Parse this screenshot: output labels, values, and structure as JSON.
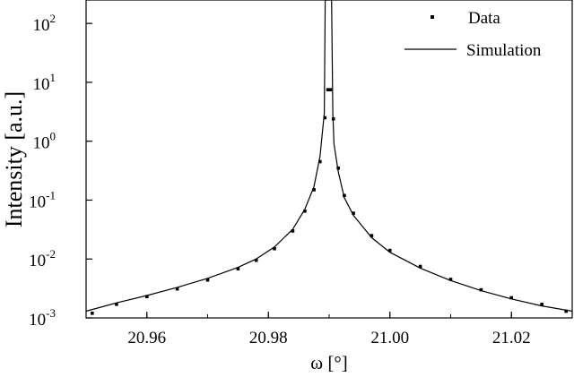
{
  "chart_data": {
    "type": "scatter",
    "title": "",
    "xlabel": "ω [°]",
    "ylabel": "Intensity [a.u.]",
    "xlim": [
      20.95,
      21.03
    ],
    "ylim": [
      0.001,
      250
    ],
    "yscale": "log",
    "grid": false,
    "legend_position": "top-right",
    "x_ticks": [
      {
        "value": 20.96,
        "label": "20.96"
      },
      {
        "value": 20.98,
        "label": "20.98"
      },
      {
        "value": 21.0,
        "label": "21.00"
      },
      {
        "value": 21.02,
        "label": "21.02"
      }
    ],
    "y_ticks": [
      {
        "value": 0.001,
        "base": "10",
        "exp": "-3"
      },
      {
        "value": 0.01,
        "base": "10",
        "exp": "-2"
      },
      {
        "value": 0.1,
        "base": "10",
        "exp": "-1"
      },
      {
        "value": 1,
        "base": "10",
        "exp": "0"
      },
      {
        "value": 10,
        "base": "10",
        "exp": "1"
      },
      {
        "value": 100,
        "base": "10",
        "exp": "2"
      }
    ],
    "series": [
      {
        "name": "Data",
        "style": "points",
        "color": "#000000",
        "x": [
          20.951,
          20.955,
          20.96,
          20.965,
          20.97,
          20.975,
          20.978,
          20.981,
          20.984,
          20.986,
          20.9875,
          20.9885,
          20.9893,
          20.9898,
          20.9902,
          20.9907,
          20.9915,
          20.9925,
          20.994,
          20.997,
          21.0,
          21.005,
          21.01,
          21.015,
          21.02,
          21.025,
          21.029
        ],
        "y": [
          0.0012,
          0.0017,
          0.0023,
          0.0031,
          0.0044,
          0.0068,
          0.0095,
          0.015,
          0.03,
          0.065,
          0.15,
          0.45,
          2.5,
          7.5,
          7.5,
          2.4,
          0.35,
          0.12,
          0.06,
          0.025,
          0.014,
          0.0075,
          0.0045,
          0.003,
          0.0022,
          0.0017,
          0.0013
        ]
      },
      {
        "name": "Simulation",
        "style": "line",
        "color": "#000000",
        "x": [
          20.95,
          20.955,
          20.96,
          20.965,
          20.97,
          20.975,
          20.978,
          20.981,
          20.984,
          20.986,
          20.9875,
          20.9885,
          20.9892,
          20.98935,
          20.98955,
          20.9904,
          20.9906,
          20.9908,
          20.9915,
          20.9925,
          20.994,
          20.997,
          21.0,
          21.005,
          21.01,
          21.015,
          21.02,
          21.025,
          21.03
        ],
        "y": [
          0.0013,
          0.0018,
          0.0024,
          0.0033,
          0.0047,
          0.0072,
          0.01,
          0.016,
          0.032,
          0.07,
          0.17,
          0.55,
          3.0,
          250,
          250,
          250,
          3.0,
          0.9,
          0.3,
          0.11,
          0.055,
          0.023,
          0.013,
          0.007,
          0.0043,
          0.0029,
          0.0021,
          0.0016,
          0.0013
        ]
      }
    ]
  }
}
